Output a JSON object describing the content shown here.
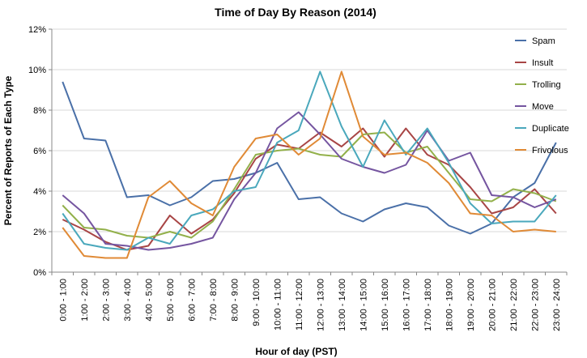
{
  "chart_data": {
    "type": "line",
    "title": "Time of Day By Reason (2014)",
    "xlabel": "Hour of day (PST)",
    "ylabel": "Percent of Reports of Each Type",
    "ylim": [
      0,
      12
    ],
    "yticks": [
      "0%",
      "2%",
      "4%",
      "6%",
      "8%",
      "10%",
      "12%"
    ],
    "grid": "horizontal",
    "legend_position": "right",
    "categories": [
      "0:00 - 1:00",
      "1:00 - 2:00",
      "2:00 - 3:00",
      "3:00 - 4:00",
      "4:00 - 5:00",
      "5:00 - 6:00",
      "6:00 - 7:00",
      "7:00 - 8:00",
      "8:00 - 9:00",
      "9:00 - 10:00",
      "10:00 - 11:00",
      "11:00 - 12:00",
      "12:00 - 13:00",
      "13:00 - 14:00",
      "14:00 - 15:00",
      "15:00 - 16:00",
      "16:00 - 17:00",
      "17:00 - 18:00",
      "18:00 - 19:00",
      "19:00 - 20:00",
      "20:00 - 21:00",
      "21:00 - 22:00",
      "22:00 - 23:00",
      "23:00 - 24:00"
    ],
    "series": [
      {
        "name": "Spam",
        "color": "#4a70a8",
        "values": [
          9.4,
          6.6,
          6.5,
          3.7,
          3.8,
          3.3,
          3.7,
          4.5,
          4.6,
          4.9,
          5.4,
          3.6,
          3.7,
          2.9,
          2.5,
          3.1,
          3.4,
          3.2,
          2.3,
          1.9,
          2.4,
          3.7,
          4.4,
          6.4
        ]
      },
      {
        "name": "Insult",
        "color": "#a84545",
        "values": [
          2.6,
          2.1,
          1.5,
          1.1,
          1.3,
          2.8,
          1.9,
          2.6,
          3.9,
          5.6,
          6.3,
          6.1,
          6.9,
          6.2,
          7.1,
          5.7,
          7.1,
          5.8,
          5.3,
          4.2,
          2.9,
          3.2,
          4.1,
          2.9
        ]
      },
      {
        "name": "Trolling",
        "color": "#92b04a",
        "values": [
          3.3,
          2.2,
          2.1,
          1.8,
          1.7,
          2.0,
          1.7,
          2.5,
          4.1,
          5.8,
          6.0,
          6.1,
          5.8,
          5.7,
          6.8,
          6.9,
          5.9,
          6.2,
          4.9,
          3.6,
          3.5,
          4.1,
          3.9,
          3.5
        ]
      },
      {
        "name": "Move",
        "color": "#7555a0",
        "values": [
          3.8,
          2.9,
          1.4,
          1.3,
          1.1,
          1.2,
          1.4,
          1.7,
          3.6,
          4.9,
          7.1,
          7.9,
          6.8,
          5.6,
          5.2,
          4.9,
          5.3,
          7.0,
          5.5,
          5.9,
          3.8,
          3.7,
          3.2,
          3.6
        ]
      },
      {
        "name": "Duplicate",
        "color": "#4aa8bc",
        "values": [
          2.9,
          1.4,
          1.2,
          1.1,
          1.7,
          1.4,
          2.8,
          3.1,
          4.0,
          4.2,
          6.4,
          7.0,
          9.9,
          7.2,
          5.2,
          7.5,
          5.8,
          7.1,
          5.4,
          3.4,
          2.4,
          2.5,
          2.5,
          3.8
        ]
      },
      {
        "name": "Frivolous",
        "color": "#e08a36",
        "values": [
          2.2,
          0.8,
          0.7,
          0.7,
          3.7,
          4.5,
          3.4,
          2.8,
          5.2,
          6.6,
          6.8,
          5.8,
          6.6,
          9.9,
          6.7,
          5.8,
          5.9,
          5.4,
          4.4,
          2.9,
          2.8,
          2.0,
          2.1,
          2.0
        ]
      }
    ]
  }
}
